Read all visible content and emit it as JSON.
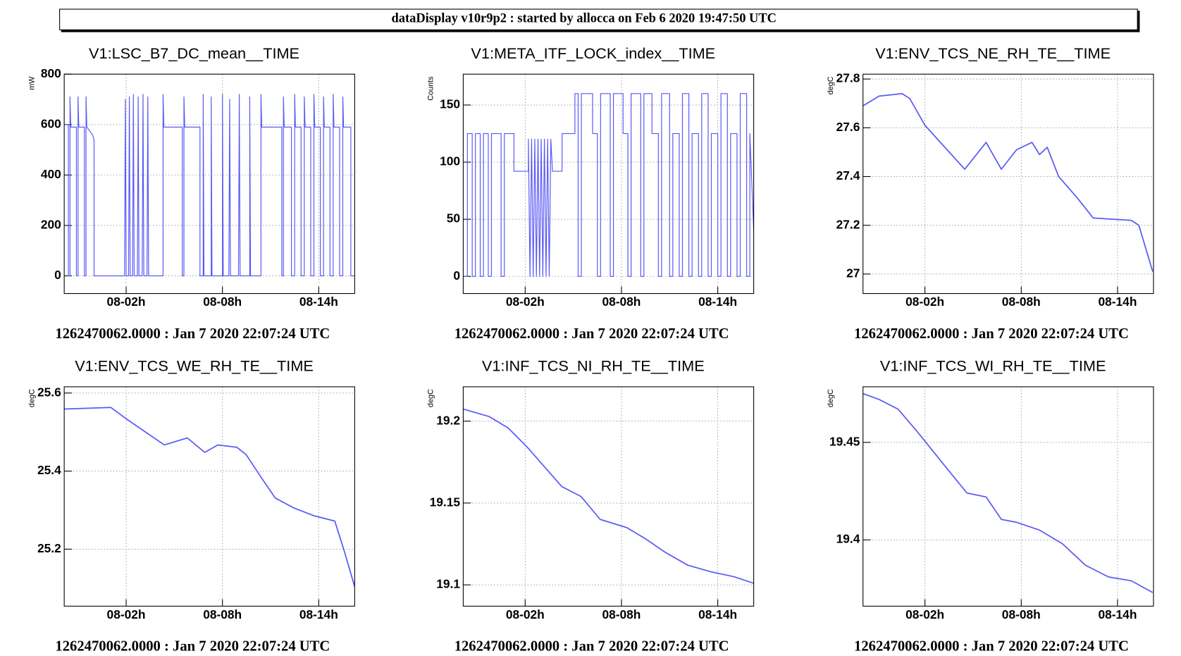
{
  "header": "dataDisplay v10r9p2 : started by allocca on Feb  6 2020 19:47:50 UTC",
  "chart_data": [
    {
      "type": "line",
      "title": "V1:LSC_B7_DC_mean__TIME",
      "y_label": "mW",
      "footer": "1262470062.0000 : Jan  7 2020 22:07:24 UTC",
      "color": "#5a5af5",
      "grid": true,
      "xlim": [
        -1.86,
        16.24
      ],
      "xticks": [
        {
          "value": 2,
          "label": "08-02h"
        },
        {
          "value": 8,
          "label": "08-08h"
        },
        {
          "value": 14,
          "label": "08-14h"
        }
      ],
      "ylim": [
        -70,
        800
      ],
      "yticks": [
        0,
        200,
        400,
        600,
        800
      ],
      "x": [
        -1.86,
        -1.6,
        -1.6,
        -1.5,
        -1.5,
        -1.45,
        -1.1,
        -1.1,
        -1.0,
        -1.0,
        -0.95,
        -0.6,
        -0.6,
        -0.5,
        -0.5,
        -0.45,
        -0.1,
        0.0,
        0.0,
        1.9,
        1.95,
        2.0,
        2.15,
        2.2,
        2.25,
        2.4,
        2.45,
        2.5,
        2.7,
        2.75,
        2.8,
        3.0,
        3.05,
        3.1,
        3.3,
        3.35,
        3.4,
        4.3,
        4.3,
        4.35,
        5.5,
        5.5,
        5.6,
        5.6,
        5.65,
        6.6,
        6.6,
        6.8,
        6.8,
        6.85,
        7.3,
        7.3,
        7.35,
        8.0,
        8.0,
        8.05,
        8.4,
        8.45,
        8.5,
        9.0,
        9.05,
        9.1,
        9.7,
        9.7,
        9.75,
        10.4,
        10.4,
        10.45,
        11.7,
        11.7,
        11.8,
        11.8,
        11.85,
        12.3,
        12.3,
        12.5,
        12.5,
        12.55,
        12.9,
        12.9,
        13.1,
        13.1,
        13.15,
        13.5,
        13.5,
        13.7,
        13.7,
        13.75,
        14.1,
        14.1,
        14.3,
        14.3,
        14.35,
        14.7,
        14.7,
        14.9,
        14.9,
        14.95,
        15.3,
        15.3,
        15.5,
        15.5,
        15.55,
        16.0,
        16.0,
        16.24
      ],
      "values": [
        600,
        600,
        0,
        0,
        710,
        590,
        590,
        0,
        0,
        710,
        590,
        590,
        0,
        0,
        710,
        590,
        560,
        540,
        0,
        0,
        700,
        0,
        0,
        710,
        0,
        0,
        720,
        0,
        0,
        710,
        0,
        0,
        720,
        0,
        0,
        710,
        0,
        0,
        720,
        590,
        590,
        0,
        0,
        710,
        590,
        590,
        0,
        0,
        720,
        0,
        0,
        710,
        0,
        0,
        720,
        0,
        0,
        700,
        0,
        0,
        720,
        0,
        0,
        710,
        0,
        0,
        720,
        590,
        590,
        0,
        0,
        710,
        590,
        590,
        0,
        0,
        720,
        590,
        590,
        0,
        0,
        710,
        590,
        590,
        0,
        0,
        720,
        590,
        590,
        0,
        0,
        710,
        590,
        590,
        0,
        0,
        720,
        590,
        590,
        0,
        0,
        710,
        590,
        590,
        0,
        0
      ]
    },
    {
      "type": "line",
      "title": "V1:META_ITF_LOCK_index__TIME",
      "y_label": "Counts",
      "footer": "1262470062.0000 : Jan  7 2020 22:07:24 UTC",
      "color": "#5a5af5",
      "grid": true,
      "xlim": [
        -1.86,
        16.24
      ],
      "xticks": [
        {
          "value": 2,
          "label": "08-02h"
        },
        {
          "value": 8,
          "label": "08-08h"
        },
        {
          "value": 14,
          "label": "08-14h"
        }
      ],
      "ylim": [
        -15,
        177
      ],
      "yticks": [
        0,
        50,
        100,
        150
      ],
      "x": [
        -1.86,
        -1.6,
        -1.6,
        -1.3,
        -1.3,
        -1.1,
        -1.1,
        -0.8,
        -0.8,
        -0.6,
        -0.6,
        -0.3,
        -0.3,
        -0.1,
        -0.1,
        0.5,
        0.5,
        0.7,
        0.7,
        1.3,
        1.3,
        2.2,
        2.2,
        2.3,
        2.4,
        2.5,
        2.6,
        2.7,
        2.8,
        2.9,
        3.0,
        3.1,
        3.2,
        3.3,
        3.4,
        3.5,
        3.6,
        3.7,
        4.3,
        4.3,
        5.1,
        5.1,
        5.3,
        5.3,
        5.5,
        5.5,
        6.2,
        6.2,
        6.5,
        6.5,
        6.7,
        6.7,
        7.3,
        7.3,
        7.5,
        7.5,
        8.1,
        8.1,
        8.4,
        8.4,
        8.6,
        8.6,
        9.2,
        9.2,
        9.4,
        9.4,
        9.9,
        9.9,
        10.3,
        10.3,
        10.5,
        10.5,
        11.0,
        11.0,
        11.2,
        11.2,
        11.6,
        11.6,
        11.8,
        11.8,
        12.2,
        12.2,
        12.4,
        12.4,
        12.8,
        12.8,
        13.0,
        13.0,
        13.4,
        13.4,
        13.6,
        13.6,
        14.0,
        14.0,
        14.2,
        14.2,
        14.6,
        14.6,
        14.8,
        14.8,
        15.2,
        15.2,
        15.4,
        15.4,
        15.8,
        15.8,
        16.0,
        16.0,
        16.24
      ],
      "values": [
        0,
        0,
        125,
        125,
        0,
        0,
        125,
        125,
        0,
        0,
        125,
        125,
        0,
        0,
        125,
        125,
        0,
        0,
        125,
        125,
        92,
        92,
        120,
        0,
        120,
        0,
        120,
        0,
        120,
        0,
        120,
        0,
        120,
        0,
        120,
        0,
        120,
        92,
        92,
        125,
        125,
        160,
        160,
        0,
        0,
        160,
        160,
        125,
        125,
        0,
        0,
        160,
        160,
        0,
        0,
        160,
        160,
        125,
        125,
        0,
        0,
        160,
        160,
        0,
        0,
        160,
        160,
        125,
        125,
        0,
        0,
        160,
        160,
        0,
        0,
        125,
        125,
        0,
        0,
        160,
        160,
        0,
        0,
        125,
        125,
        0,
        0,
        160,
        160,
        0,
        0,
        125,
        125,
        0,
        0,
        160,
        160,
        0,
        0,
        125,
        125,
        0,
        0,
        160,
        160,
        0,
        0,
        125,
        40
      ]
    },
    {
      "type": "line",
      "title": "V1:ENV_TCS_NE_RH_TE__TIME",
      "y_label": "degC",
      "footer": "1262470062.0000 : Jan  7 2020 22:07:24 UTC",
      "color": "#5a5af5",
      "grid": true,
      "xlim": [
        -1.86,
        16.24
      ],
      "xticks": [
        {
          "value": 2,
          "label": "08-02h"
        },
        {
          "value": 8,
          "label": "08-08h"
        },
        {
          "value": 14,
          "label": "08-14h"
        }
      ],
      "ylim": [
        26.92,
        27.82
      ],
      "yticks": [
        27,
        27.2,
        27.4,
        27.6,
        27.8
      ],
      "x": [
        -1.86,
        -0.86,
        0.57,
        1.05,
        2.0,
        4.48,
        5.81,
        6.76,
        7.71,
        8.67,
        9.14,
        9.62,
        10.33,
        11.52,
        12.48,
        14.86,
        15.33,
        16.19
      ],
      "values": [
        27.69,
        27.73,
        27.74,
        27.72,
        27.61,
        27.43,
        27.54,
        27.43,
        27.51,
        27.54,
        27.49,
        27.52,
        27.4,
        27.31,
        27.23,
        27.22,
        27.2,
        27.01
      ]
    },
    {
      "type": "line",
      "title": "V1:ENV_TCS_WE_RH_TE__TIME",
      "y_label": "degC",
      "footer": "1262470062.0000 : Jan  7 2020 22:07:24 UTC",
      "color": "#5a5af5",
      "grid": true,
      "xlim": [
        -1.86,
        16.24
      ],
      "xticks": [
        {
          "value": 2,
          "label": "08-02h"
        },
        {
          "value": 8,
          "label": "08-08h"
        },
        {
          "value": 14,
          "label": "08-14h"
        }
      ],
      "ylim": [
        25.054,
        25.616
      ],
      "yticks": [
        25.2,
        25.4,
        25.6
      ],
      "x": [
        -1.86,
        1.05,
        2.0,
        4.38,
        5.81,
        6.9,
        7.71,
        8.9,
        9.48,
        10.33,
        11.29,
        12.48,
        13.67,
        15.0,
        15.57,
        16.24
      ],
      "values": [
        25.559,
        25.563,
        25.534,
        25.467,
        25.485,
        25.448,
        25.467,
        25.461,
        25.442,
        25.389,
        25.331,
        25.305,
        25.286,
        25.272,
        25.198,
        25.104
      ]
    },
    {
      "type": "line",
      "title": "V1:INF_TCS_NI_RH_TE__TIME",
      "y_label": "degC",
      "footer": "1262470062.0000 : Jan  7 2020 22:07:24 UTC",
      "color": "#5a5af5",
      "grid": true,
      "xlim": [
        -1.86,
        16.24
      ],
      "xticks": [
        {
          "value": 2,
          "label": "08-02h"
        },
        {
          "value": 8,
          "label": "08-08h"
        },
        {
          "value": 14,
          "label": "08-14h"
        }
      ],
      "ylim": [
        19.087,
        19.221
      ],
      "yticks": [
        19.1,
        19.15,
        19.2
      ],
      "x": [
        -1.86,
        -0.24,
        0.95,
        2.14,
        3.57,
        4.29,
        5.48,
        6.67,
        8.33,
        9.52,
        10.71,
        12.14,
        13.57,
        15.0,
        16.24
      ],
      "values": [
        19.2074,
        19.2028,
        19.1958,
        19.184,
        19.168,
        19.16,
        19.154,
        19.14,
        19.135,
        19.128,
        19.12,
        19.112,
        19.108,
        19.105,
        19.101
      ]
    },
    {
      "type": "line",
      "title": "V1:INF_TCS_WI_RH_TE__TIME",
      "y_label": "degC",
      "footer": "1262470062.0000 : Jan  7 2020 22:07:24 UTC",
      "color": "#5a5af5",
      "grid": true,
      "xlim": [
        -1.86,
        16.24
      ],
      "xticks": [
        {
          "value": 2,
          "label": "08-02h"
        },
        {
          "value": 8,
          "label": "08-08h"
        },
        {
          "value": 14,
          "label": "08-14h"
        }
      ],
      "ylim": [
        19.366,
        19.4785
      ],
      "yticks": [
        19.4,
        19.45
      ],
      "x": [
        -1.86,
        -0.86,
        0.33,
        1.52,
        3.43,
        4.62,
        5.81,
        6.76,
        7.71,
        9.14,
        10.57,
        12.0,
        13.43,
        14.86,
        16.19
      ],
      "values": [
        19.475,
        19.472,
        19.467,
        19.4555,
        19.436,
        19.424,
        19.422,
        19.4105,
        19.409,
        19.405,
        19.398,
        19.387,
        19.381,
        19.379,
        19.373
      ]
    }
  ]
}
